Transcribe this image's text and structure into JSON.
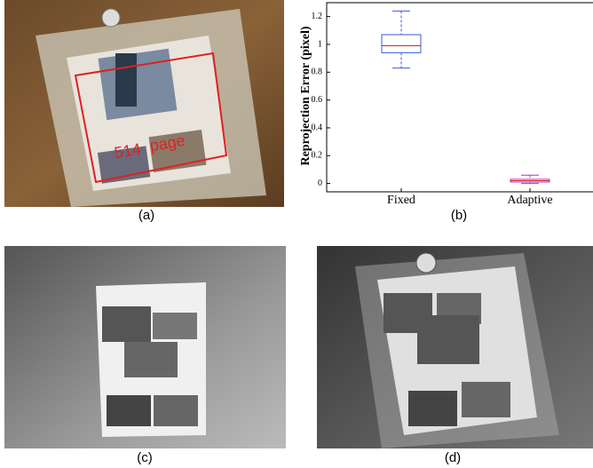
{
  "panels": {
    "a": {
      "label": "(a)",
      "overlay": [
        "514",
        "page"
      ]
    },
    "b": {
      "label": "(b)"
    },
    "c": {
      "label": "(c)"
    },
    "d": {
      "label": "(d)"
    }
  },
  "chart_data": {
    "type": "box",
    "ylabel": "Reprojection Error (pixel)",
    "categories": [
      "Fixed",
      "Adaptive"
    ],
    "boxes": [
      {
        "min": 0.83,
        "q1": 0.94,
        "median": 0.99,
        "q3": 1.07,
        "max": 1.24,
        "color": "#3b5bd6"
      },
      {
        "min": 0.0,
        "q1": 0.01,
        "median": 0.02,
        "q3": 0.03,
        "max": 0.06,
        "color": "#b030c8"
      }
    ],
    "median_color": "#e02020",
    "ylim": [
      -0.06,
      1.3
    ],
    "yticks": [
      0,
      0.2,
      0.4,
      0.6,
      0.8,
      1,
      1.2
    ]
  }
}
